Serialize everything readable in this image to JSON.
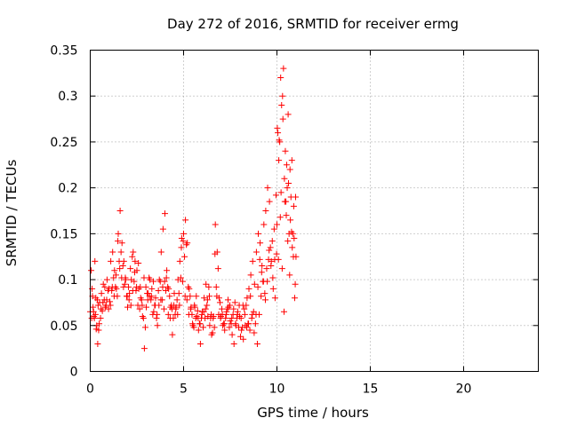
{
  "chart_data": {
    "type": "scatter",
    "title": "Day 272 of 2016, SRMTID for receiver ermg",
    "xlabel": "GPS time / hours",
    "ylabel": "SRMTID / TECUs",
    "xlim": [
      0,
      24
    ],
    "ylim": [
      0,
      0.35
    ],
    "x_ticks": [
      0,
      5,
      10,
      15,
      20
    ],
    "x_tick_labels": [
      "0",
      "5",
      "10",
      "15",
      "20"
    ],
    "y_ticks": [
      0,
      0.05,
      0.1,
      0.15,
      0.2,
      0.25,
      0.3,
      0.35
    ],
    "y_tick_labels": [
      "0",
      "0.05",
      "0.1",
      "0.15",
      "0.2",
      "0.25",
      "0.3",
      "0.35"
    ],
    "grid": true,
    "marker": "+",
    "color": "#ff0000",
    "series": [
      {
        "name": "SRMTID",
        "x": [
          0.0,
          0.05,
          0.1,
          0.15,
          0.2,
          0.25,
          0.3,
          0.35,
          0.4,
          0.45,
          0.5,
          0.6,
          0.7,
          0.8,
          0.9,
          1.0,
          1.1,
          1.2,
          1.3,
          1.4,
          1.5,
          1.6,
          1.7,
          1.8,
          1.9,
          2.0,
          2.1,
          2.2,
          2.3,
          2.4,
          2.5,
          2.6,
          2.7,
          2.8,
          2.9,
          3.0,
          3.1,
          3.2,
          3.3,
          3.4,
          3.5,
          3.6,
          3.7,
          3.8,
          3.9,
          4.0,
          4.1,
          4.2,
          4.3,
          4.4,
          4.5,
          4.6,
          4.7,
          4.8,
          4.9,
          5.0,
          5.1,
          5.2,
          5.3,
          5.4,
          5.5,
          5.6,
          5.7,
          5.8,
          5.9,
          6.0,
          6.1,
          6.2,
          6.3,
          6.4,
          6.5,
          6.6,
          6.7,
          6.8,
          6.9,
          7.0,
          7.1,
          7.2,
          7.3,
          7.4,
          7.5,
          7.6,
          7.7,
          7.8,
          7.9,
          8.0,
          8.1,
          8.2,
          8.3,
          8.4,
          8.5,
          8.6,
          8.7,
          8.8,
          8.9,
          9.0,
          9.1,
          9.2,
          9.3,
          9.4,
          9.5,
          9.6,
          9.7,
          9.8,
          9.9,
          10.0,
          10.05,
          10.1,
          10.15,
          10.2,
          10.25,
          10.3,
          10.35,
          10.4,
          10.45,
          10.5,
          10.55,
          10.6,
          10.65,
          10.7,
          10.75,
          10.8,
          10.85,
          10.9,
          10.95,
          11.0,
          0.12,
          0.22,
          0.32,
          0.42,
          0.55,
          0.65,
          0.75,
          0.85,
          0.95,
          1.05,
          1.15,
          1.25,
          1.35,
          1.45,
          1.55,
          1.65,
          1.75,
          1.85,
          1.95,
          2.05,
          2.15,
          2.25,
          2.35,
          2.45,
          2.55,
          2.65,
          2.75,
          2.85,
          2.95,
          3.05,
          3.15,
          3.25,
          3.35,
          3.45,
          3.55,
          3.65,
          3.75,
          3.85,
          3.95,
          4.05,
          4.15,
          4.25,
          4.35,
          4.45,
          4.55,
          4.65,
          4.75,
          4.85,
          4.95,
          5.05,
          5.15,
          5.25,
          5.35,
          5.45,
          5.55,
          5.65,
          5.75,
          5.85,
          5.95,
          6.05,
          6.15,
          6.25,
          6.35,
          6.45,
          6.55,
          6.65,
          6.75,
          6.85,
          6.95,
          7.05,
          7.15,
          7.25,
          7.35,
          7.45,
          7.55,
          7.65,
          7.75,
          7.85,
          7.95,
          8.05,
          8.15,
          8.25,
          8.35,
          8.45,
          8.55,
          8.65,
          8.75,
          8.85,
          8.95,
          9.05,
          9.15,
          9.25,
          9.35,
          9.45,
          9.55,
          9.65,
          9.75,
          9.85,
          9.95,
          10.02,
          10.12,
          10.22,
          10.32,
          10.42,
          10.52,
          10.62,
          10.72,
          10.82,
          10.92,
          11.02,
          0.08,
          0.18,
          0.28,
          0.38,
          0.48,
          0.58,
          0.68,
          0.78,
          0.88,
          0.98,
          1.08,
          1.18,
          1.28,
          1.38,
          1.48,
          1.58,
          1.68,
          1.78,
          1.88,
          1.98,
          2.08,
          2.18,
          2.28,
          2.38,
          2.48,
          2.58,
          2.68,
          2.78,
          2.88,
          2.98,
          3.08,
          3.18,
          3.28,
          3.38,
          3.48,
          3.58,
          3.68,
          3.78,
          3.88,
          3.98,
          4.08,
          4.18,
          4.28,
          4.38,
          4.48,
          4.58,
          4.68,
          4.78,
          4.88,
          4.98,
          5.08,
          5.18,
          5.28,
          5.38,
          5.48,
          5.58,
          5.68,
          5.78,
          5.88,
          5.98,
          6.08,
          6.18,
          6.28,
          6.38,
          6.48,
          6.58,
          6.68,
          6.78,
          6.88,
          6.98,
          7.08,
          7.18,
          7.28,
          7.38,
          7.48,
          7.58,
          7.68,
          7.78,
          7.88,
          7.98,
          8.08,
          8.18,
          8.28,
          8.38,
          8.48,
          8.58,
          8.68,
          8.78,
          8.88,
          8.98,
          9.08,
          9.18,
          9.28,
          9.38,
          9.48,
          9.58,
          9.68,
          9.78,
          9.88,
          9.98,
          10.08,
          10.18,
          10.28,
          10.38,
          10.48,
          10.58,
          10.68,
          10.78,
          10.88,
          10.98
        ],
        "y": [
          0.065,
          0.11,
          0.09,
          0.07,
          0.06,
          0.12,
          0.08,
          0.05,
          0.03,
          0.045,
          0.075,
          0.085,
          0.095,
          0.07,
          0.1,
          0.09,
          0.12,
          0.13,
          0.11,
          0.09,
          0.15,
          0.175,
          0.14,
          0.12,
          0.1,
          0.07,
          0.085,
          0.1,
          0.13,
          0.12,
          0.11,
          0.09,
          0.08,
          0.06,
          0.025,
          0.07,
          0.085,
          0.1,
          0.09,
          0.065,
          0.08,
          0.05,
          0.1,
          0.13,
          0.155,
          0.172,
          0.11,
          0.09,
          0.07,
          0.04,
          0.085,
          0.07,
          0.1,
          0.12,
          0.145,
          0.15,
          0.165,
          0.14,
          0.09,
          0.07,
          0.05,
          0.07,
          0.06,
          0.045,
          0.03,
          0.065,
          0.08,
          0.095,
          0.06,
          0.05,
          0.04,
          0.06,
          0.16,
          0.13,
          0.08,
          0.06,
          0.05,
          0.045,
          0.065,
          0.07,
          0.055,
          0.04,
          0.03,
          0.05,
          0.065,
          0.06,
          0.045,
          0.035,
          0.05,
          0.08,
          0.09,
          0.105,
          0.12,
          0.095,
          0.13,
          0.15,
          0.14,
          0.115,
          0.16,
          0.175,
          0.2,
          0.185,
          0.12,
          0.09,
          0.08,
          0.16,
          0.26,
          0.23,
          0.25,
          0.32,
          0.29,
          0.3,
          0.33,
          0.21,
          0.24,
          0.17,
          0.2,
          0.28,
          0.15,
          0.22,
          0.19,
          0.23,
          0.15,
          0.18,
          0.08,
          0.19,
          0.082,
          0.058,
          0.046,
          0.072,
          0.058,
          0.066,
          0.078,
          0.072,
          0.088,
          0.076,
          0.088,
          0.102,
          0.092,
          0.082,
          0.12,
          0.13,
          0.115,
          0.095,
          0.082,
          0.092,
          0.112,
          0.125,
          0.098,
          0.088,
          0.072,
          0.068,
          0.078,
          0.058,
          0.048,
          0.085,
          0.102,
          0.078,
          0.062,
          0.072,
          0.058,
          0.088,
          0.098,
          0.078,
          0.068,
          0.088,
          0.092,
          0.082,
          0.072,
          0.058,
          0.062,
          0.078,
          0.085,
          0.102,
          0.098,
          0.125,
          0.138,
          0.092,
          0.082,
          0.062,
          0.048,
          0.058,
          0.066,
          0.052,
          0.058,
          0.048,
          0.058,
          0.072,
          0.092,
          0.058,
          0.042,
          0.048,
          0.092,
          0.112,
          0.075,
          0.068,
          0.052,
          0.058,
          0.068,
          0.048,
          0.052,
          0.062,
          0.075,
          0.058,
          0.048,
          0.038,
          0.048,
          0.068,
          0.072,
          0.052,
          0.045,
          0.058,
          0.065,
          0.052,
          0.03,
          0.062,
          0.082,
          0.098,
          0.085,
          0.112,
          0.122,
          0.135,
          0.142,
          0.155,
          0.192,
          0.265,
          0.252,
          0.195,
          0.275,
          0.185,
          0.225,
          0.205,
          0.165,
          0.135,
          0.145,
          0.125,
          0.058,
          0.065,
          0.062,
          0.078,
          0.052,
          0.068,
          0.075,
          0.092,
          0.078,
          0.068,
          0.072,
          0.092,
          0.082,
          0.105,
          0.142,
          0.112,
          0.102,
          0.092,
          0.102,
          0.082,
          0.078,
          0.072,
          0.088,
          0.108,
          0.092,
          0.118,
          0.092,
          0.072,
          0.102,
          0.092,
          0.078,
          0.082,
          0.082,
          0.098,
          0.072,
          0.062,
          0.072,
          0.078,
          0.092,
          0.098,
          0.102,
          0.062,
          0.058,
          0.068,
          0.072,
          0.068,
          0.062,
          0.072,
          0.135,
          0.142,
          0.082,
          0.078,
          0.062,
          0.068,
          0.052,
          0.072,
          0.082,
          0.058,
          0.052,
          0.062,
          0.065,
          0.068,
          0.078,
          0.082,
          0.062,
          0.058,
          0.128,
          0.082,
          0.062,
          0.058,
          0.062,
          0.052,
          0.062,
          0.078,
          0.072,
          0.058,
          0.068,
          0.052,
          0.062,
          0.072,
          0.058,
          0.072,
          0.062,
          0.048,
          0.052,
          0.082,
          0.062,
          0.042,
          0.062,
          0.092,
          0.122,
          0.108,
          0.098,
          0.078,
          0.098,
          0.132,
          0.115,
          0.102,
          0.122,
          0.128,
          0.122,
          0.168,
          0.112,
          0.065,
          0.185,
          0.142,
          0.105,
          0.152,
          0.125,
          0.095
        ]
      }
    ]
  }
}
